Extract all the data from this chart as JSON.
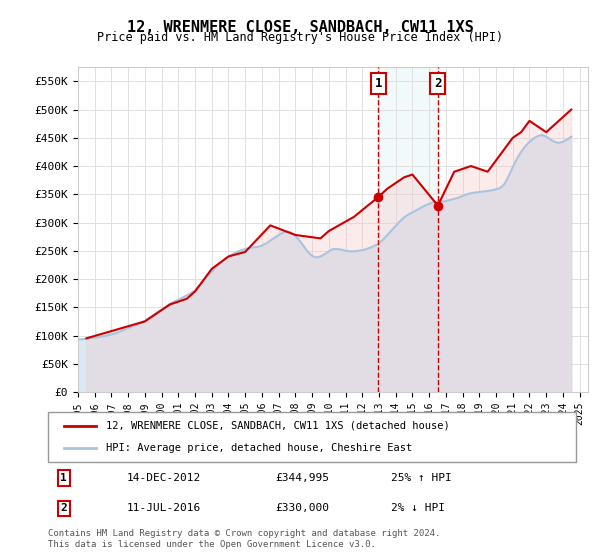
{
  "title": "12, WRENMERE CLOSE, SANDBACH, CW11 1XS",
  "subtitle": "Price paid vs. HM Land Registry's House Price Index (HPI)",
  "ylabel_ticks": [
    "£0",
    "£50K",
    "£100K",
    "£150K",
    "£200K",
    "£250K",
    "£300K",
    "£350K",
    "£400K",
    "£450K",
    "£500K",
    "£550K"
  ],
  "ytick_values": [
    0,
    50000,
    100000,
    150000,
    200000,
    250000,
    300000,
    350000,
    400000,
    450000,
    500000,
    550000
  ],
  "ylim": [
    0,
    575000
  ],
  "xlim_start": 1995.0,
  "xlim_end": 2025.5,
  "background_color": "#ffffff",
  "grid_color": "#e0e0e0",
  "hpi_line_color": "#aac4e0",
  "property_line_color": "#cc0000",
  "hpi_fill_color": "#daeaf5",
  "property_fill_color": "#f5c0c0",
  "transaction1_x": 2012.95,
  "transaction1_y": 344995,
  "transaction2_x": 2016.52,
  "transaction2_y": 330000,
  "transaction1_label": "1",
  "transaction2_label": "2",
  "legend_property": "12, WRENMERE CLOSE, SANDBACH, CW11 1XS (detached house)",
  "legend_hpi": "HPI: Average price, detached house, Cheshire East",
  "table_row1": [
    "1",
    "14-DEC-2012",
    "£344,995",
    "25% ↑ HPI"
  ],
  "table_row2": [
    "2",
    "11-JUL-2016",
    "£330,000",
    "2% ↓ HPI"
  ],
  "footer": "Contains HM Land Registry data © Crown copyright and database right 2024.\nThis data is licensed under the Open Government Licence v3.0.",
  "hpi_data_x": [
    1995.0,
    1995.25,
    1995.5,
    1995.75,
    1996.0,
    1996.25,
    1996.5,
    1996.75,
    1997.0,
    1997.25,
    1997.5,
    1997.75,
    1998.0,
    1998.25,
    1998.5,
    1998.75,
    1999.0,
    1999.25,
    1999.5,
    1999.75,
    2000.0,
    2000.25,
    2000.5,
    2000.75,
    2001.0,
    2001.25,
    2001.5,
    2001.75,
    2002.0,
    2002.25,
    2002.5,
    2002.75,
    2003.0,
    2003.25,
    2003.5,
    2003.75,
    2004.0,
    2004.25,
    2004.5,
    2004.75,
    2005.0,
    2005.25,
    2005.5,
    2005.75,
    2006.0,
    2006.25,
    2006.5,
    2006.75,
    2007.0,
    2007.25,
    2007.5,
    2007.75,
    2008.0,
    2008.25,
    2008.5,
    2008.75,
    2009.0,
    2009.25,
    2009.5,
    2009.75,
    2010.0,
    2010.25,
    2010.5,
    2010.75,
    2011.0,
    2011.25,
    2011.5,
    2011.75,
    2012.0,
    2012.25,
    2012.5,
    2012.75,
    2013.0,
    2013.25,
    2013.5,
    2013.75,
    2014.0,
    2014.25,
    2014.5,
    2014.75,
    2015.0,
    2015.25,
    2015.5,
    2015.75,
    2016.0,
    2016.25,
    2016.5,
    2016.75,
    2017.0,
    2017.25,
    2017.5,
    2017.75,
    2018.0,
    2018.25,
    2018.5,
    2018.75,
    2019.0,
    2019.25,
    2019.5,
    2019.75,
    2020.0,
    2020.25,
    2020.5,
    2020.75,
    2021.0,
    2021.25,
    2021.5,
    2021.75,
    2022.0,
    2022.25,
    2022.5,
    2022.75,
    2023.0,
    2023.25,
    2023.5,
    2023.75,
    2024.0,
    2024.25,
    2024.5
  ],
  "hpi_data_y": [
    93000,
    93500,
    94000,
    95000,
    96000,
    97000,
    98500,
    100000,
    102000,
    104000,
    107000,
    110000,
    113000,
    116000,
    119000,
    122000,
    126000,
    131000,
    136000,
    141000,
    146000,
    151000,
    156000,
    160000,
    163000,
    167000,
    171000,
    175000,
    180000,
    188000,
    196000,
    205000,
    213000,
    221000,
    228000,
    234000,
    239000,
    244000,
    248000,
    251000,
    253000,
    255000,
    256000,
    257000,
    259000,
    263000,
    268000,
    273000,
    278000,
    282000,
    284000,
    282000,
    276000,
    268000,
    258000,
    248000,
    241000,
    238000,
    240000,
    244000,
    249000,
    253000,
    253000,
    252000,
    250000,
    249000,
    249000,
    250000,
    251000,
    253000,
    256000,
    259000,
    263000,
    270000,
    278000,
    286000,
    294000,
    302000,
    309000,
    314000,
    318000,
    322000,
    326000,
    330000,
    333000,
    336000,
    337000,
    337000,
    338000,
    340000,
    342000,
    344000,
    347000,
    350000,
    352000,
    353000,
    354000,
    355000,
    356000,
    357000,
    359000,
    361000,
    368000,
    382000,
    398000,
    413000,
    425000,
    435000,
    443000,
    449000,
    453000,
    455000,
    452000,
    447000,
    443000,
    441000,
    443000,
    447000,
    452000
  ],
  "property_data_x": [
    1995.5,
    1999.0,
    2000.5,
    2001.5,
    2002.0,
    2003.0,
    2004.0,
    2005.0,
    2006.5,
    2008.0,
    2009.5,
    2010.0,
    2011.5,
    2012.95,
    2013.5,
    2014.5,
    2015.0,
    2016.52,
    2017.5,
    2018.5,
    2019.5,
    2021.0,
    2021.5,
    2022.0,
    2023.0,
    2024.5
  ],
  "property_data_y": [
    95000,
    125000,
    155000,
    165000,
    178000,
    218000,
    240000,
    248000,
    295000,
    278000,
    272000,
    285000,
    310000,
    344995,
    360000,
    380000,
    385000,
    330000,
    390000,
    400000,
    390000,
    450000,
    460000,
    480000,
    460000,
    500000
  ]
}
